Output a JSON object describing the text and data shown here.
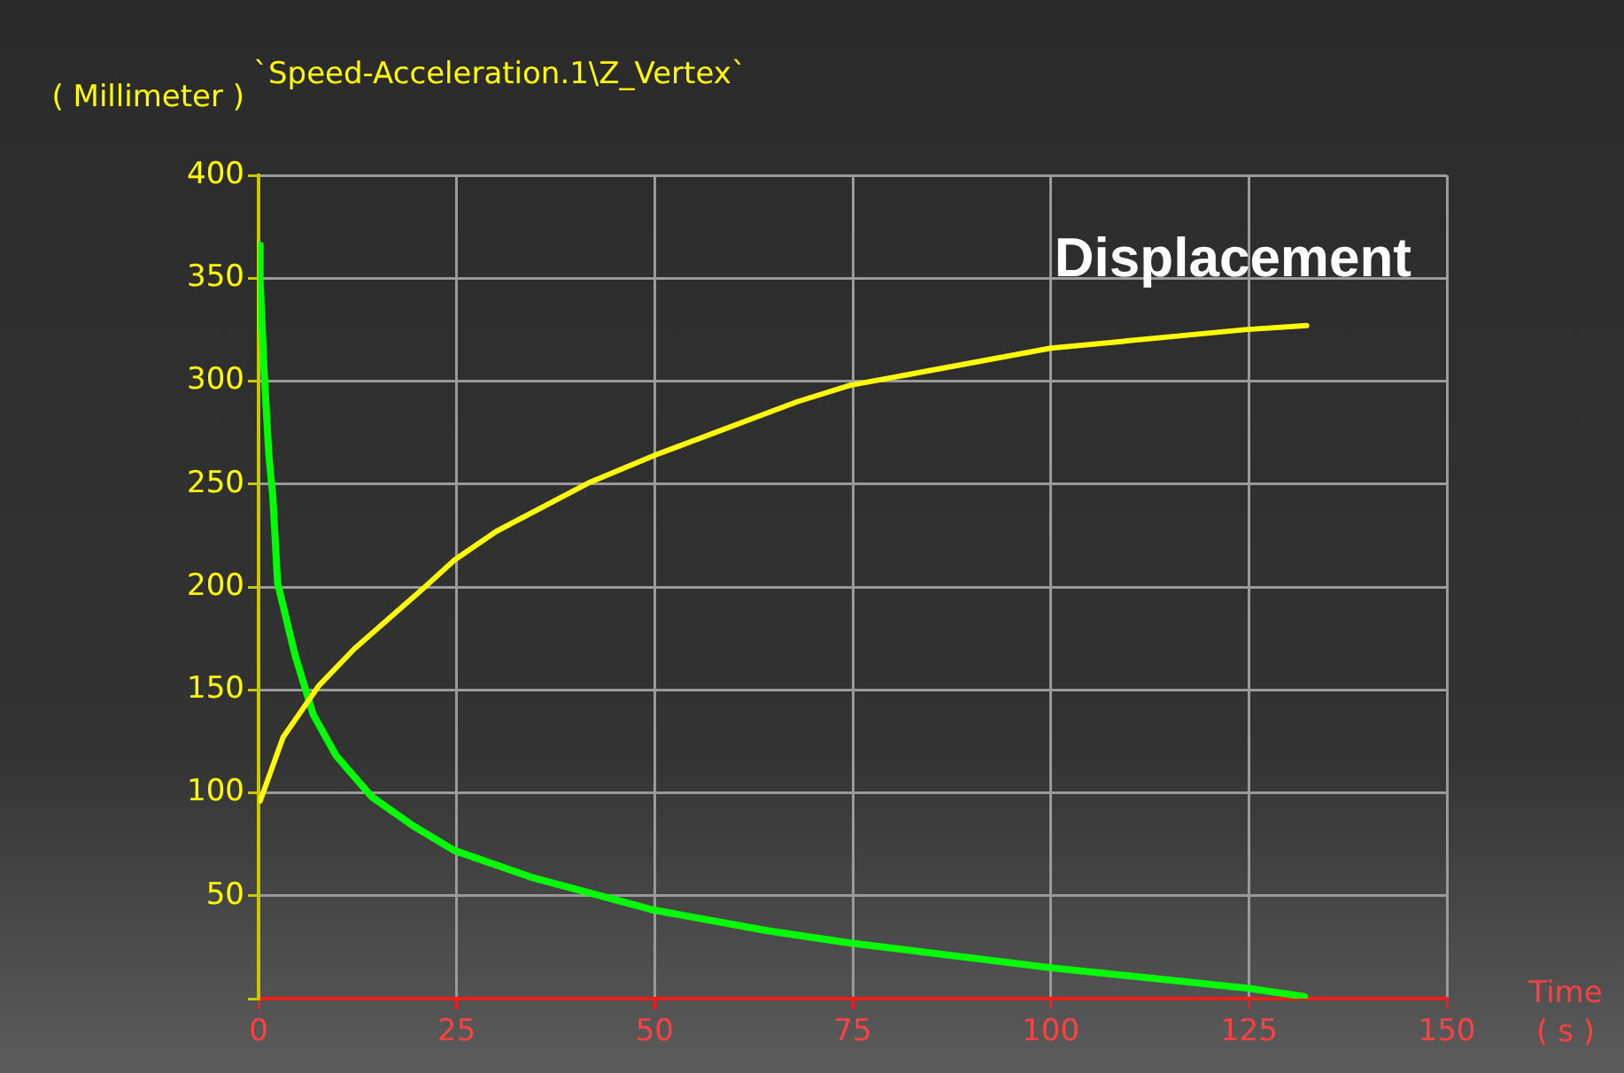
{
  "chart_data": {
    "type": "line",
    "title": "`Speed-Acceleration.1\\Z_Vertex`",
    "ylabel": "( Millimeter )",
    "xlabel": "Time\n( s )",
    "annotations": [
      "Displacement"
    ],
    "xlim": [
      0,
      150
    ],
    "xticks": [
      0,
      25,
      50,
      75,
      100,
      125,
      150
    ],
    "ylim": [
      0,
      400
    ],
    "yticks": [
      {
        "value": 0,
        "label": null
      },
      50,
      100,
      150,
      200,
      250,
      300,
      350,
      400
    ],
    "grid": true,
    "marker": "none",
    "line_style": "solid",
    "legend": false,
    "series": [
      {
        "color": "#ffff00",
        "x": [
          0.2,
          3.1,
          7.6,
          12.1,
          21,
          24.7,
          30,
          41.9,
          50,
          68,
          74.7,
          100,
          124.5,
          132.3
        ],
        "values": [
          96,
          127,
          152,
          170,
          200,
          213,
          227,
          251,
          264,
          290,
          298,
          316,
          325,
          327
        ]
      },
      {
        "color": "#00ff00",
        "x": [
          0,
          0.2,
          0.7,
          1.3,
          1.8,
          2.4,
          4.6,
          6.9,
          9.8,
          14.3,
          19.5,
          24.7,
          34.4,
          49.9,
          64.2,
          74.7,
          100,
          125,
          132
        ],
        "values": [
          366,
          349,
          305,
          264,
          244,
          202,
          167,
          138,
          118,
          98,
          84,
          72,
          59,
          43,
          33,
          27,
          15,
          5,
          1
        ]
      }
    ]
  }
}
